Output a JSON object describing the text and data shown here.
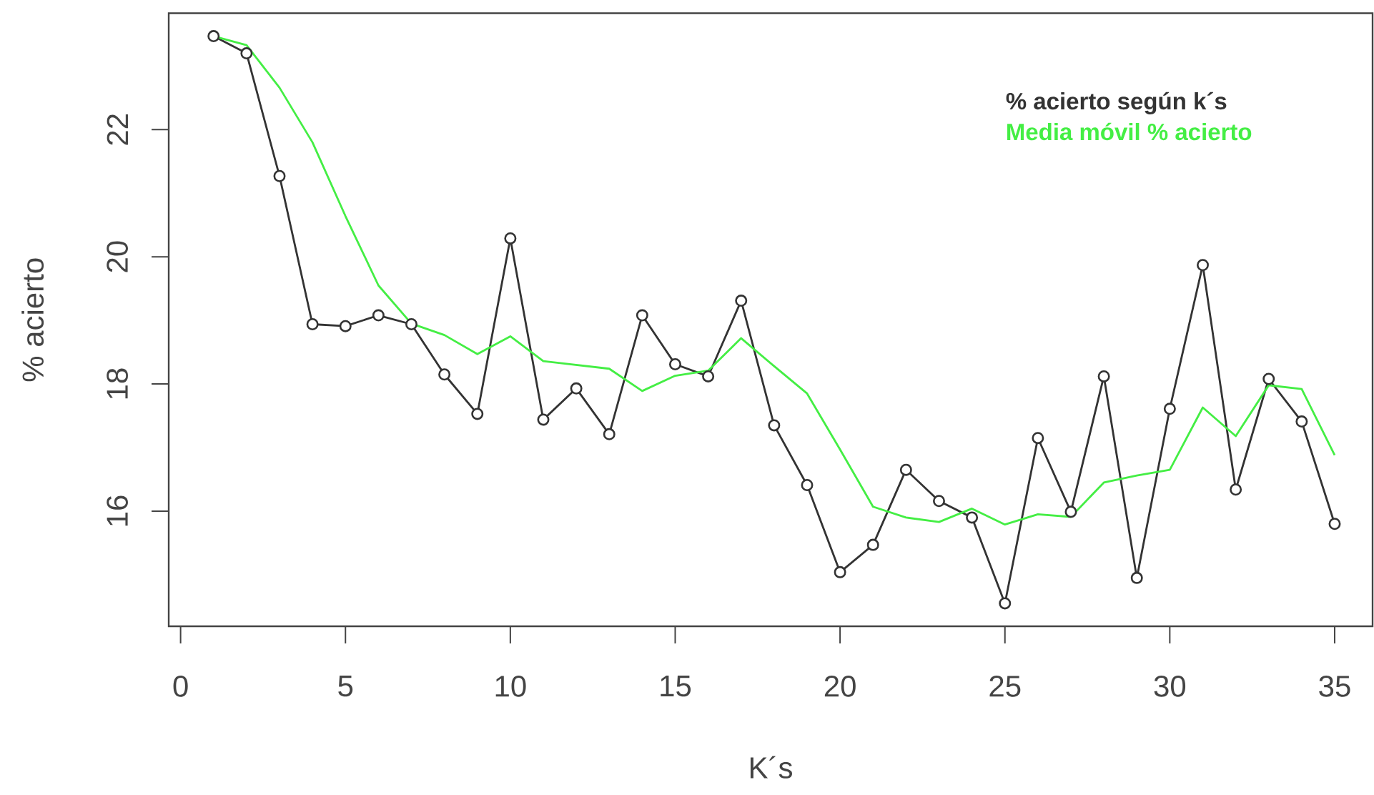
{
  "chart_data": {
    "type": "line",
    "xlabel": "K´s",
    "ylabel": "% acierto",
    "x": [
      1,
      2,
      3,
      4,
      5,
      6,
      7,
      8,
      9,
      10,
      11,
      12,
      13,
      14,
      15,
      16,
      17,
      18,
      19,
      20,
      21,
      22,
      23,
      24,
      25,
      26,
      27,
      28,
      29,
      30,
      31,
      32,
      33,
      34,
      35
    ],
    "series": [
      {
        "name": "% acierto según k´s",
        "color": "#333333",
        "marker": "circle",
        "values": [
          23.47,
          23.2,
          21.27,
          18.94,
          18.91,
          19.08,
          18.94,
          18.15,
          17.53,
          20.29,
          17.44,
          17.93,
          17.21,
          19.08,
          18.31,
          18.12,
          19.31,
          17.35,
          16.41,
          15.04,
          15.47,
          16.65,
          16.16,
          15.9,
          14.55,
          17.15,
          15.99,
          18.12,
          14.95,
          17.61,
          19.87,
          16.34,
          18.08,
          17.41,
          15.8
        ]
      },
      {
        "name": "Media móvil % acierto",
        "color": "#44ee44",
        "marker": "none",
        "values": [
          23.47,
          23.33,
          22.66,
          21.8,
          20.64,
          19.55,
          18.95,
          18.77,
          18.47,
          18.75,
          18.36,
          18.3,
          18.24,
          17.89,
          18.13,
          18.21,
          18.72,
          18.28,
          17.85,
          16.97,
          16.07,
          15.9,
          15.83,
          16.04,
          15.79,
          15.95,
          15.91,
          16.45,
          16.56,
          16.65,
          17.63,
          17.18,
          17.98,
          17.92,
          16.88
        ]
      }
    ],
    "xlim": [
      -0.36,
      36.15
    ],
    "ylim": [
      14.19,
      23.83
    ],
    "xticks": [
      0,
      5,
      10,
      15,
      20,
      25,
      30,
      35
    ],
    "yticks": [
      16,
      18,
      20,
      22
    ],
    "legend": "top right"
  }
}
